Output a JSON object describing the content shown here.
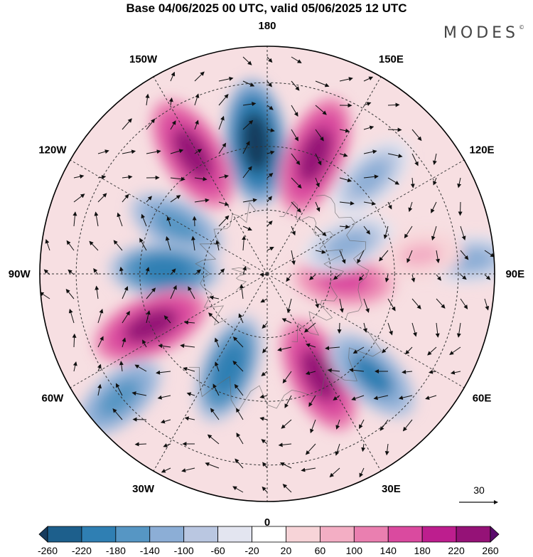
{
  "title": "Base 04/06/2025 00 UTC, valid 05/06/2025 12 UTC",
  "brand": "MODES",
  "brand_mark": "©",
  "map": {
    "projection": "north-polar-stereographic",
    "longitude_labels": [
      {
        "text": "180",
        "lon": 180
      },
      {
        "text": "150E",
        "lon": 150
      },
      {
        "text": "120E",
        "lon": 120
      },
      {
        "text": "90E",
        "lon": 90
      },
      {
        "text": "60E",
        "lon": 60
      },
      {
        "text": "30E",
        "lon": 30
      },
      {
        "text": "0",
        "lon": 0
      },
      {
        "text": "30W",
        "lon": -30
      },
      {
        "text": "60W",
        "lon": -60
      },
      {
        "text": "90W",
        "lon": -90
      },
      {
        "text": "120W",
        "lon": -120
      },
      {
        "text": "150W",
        "lon": -150
      }
    ],
    "vector_scale_label": "30",
    "anomalies": [
      {
        "lon": 185,
        "r": 0.58,
        "v": -260
      },
      {
        "lon": 158,
        "r": 0.56,
        "v": 240
      },
      {
        "lon": 133,
        "r": 0.62,
        "v": -120
      },
      {
        "lon": -148,
        "r": 0.62,
        "v": 240
      },
      {
        "lon": -118,
        "r": 0.45,
        "v": -150
      },
      {
        "lon": -92,
        "r": 0.45,
        "v": -200
      },
      {
        "lon": -66,
        "r": 0.56,
        "v": 230
      },
      {
        "lon": -50,
        "r": 0.85,
        "v": -150
      },
      {
        "lon": -22,
        "r": 0.45,
        "v": -200
      },
      {
        "lon": 27,
        "r": 0.5,
        "v": 230
      },
      {
        "lon": 46,
        "r": 0.64,
        "v": -180
      },
      {
        "lon": 85,
        "r": 0.34,
        "v": 150
      },
      {
        "lon": 110,
        "r": 0.38,
        "v": -110
      },
      {
        "lon": 94,
        "r": 0.9,
        "v": -100
      },
      {
        "lon": 97,
        "r": 0.68,
        "v": 70
      }
    ]
  },
  "colorbar": {
    "labels": [
      "-260",
      "-220",
      "-180",
      "-140",
      "-100",
      "-60",
      "-20",
      "20",
      "60",
      "100",
      "140",
      "180",
      "220",
      "260"
    ],
    "colors": [
      "#173c5e",
      "#1d5f8c",
      "#2f7fb3",
      "#5696c4",
      "#8caed6",
      "#bac7e1",
      "#e3e5f0",
      "#ffffff",
      "#f7d4d8",
      "#f3aec4",
      "#ea7fb0",
      "#da4a9f",
      "#bd1e8e",
      "#951277",
      "#5a0a6c"
    ]
  }
}
